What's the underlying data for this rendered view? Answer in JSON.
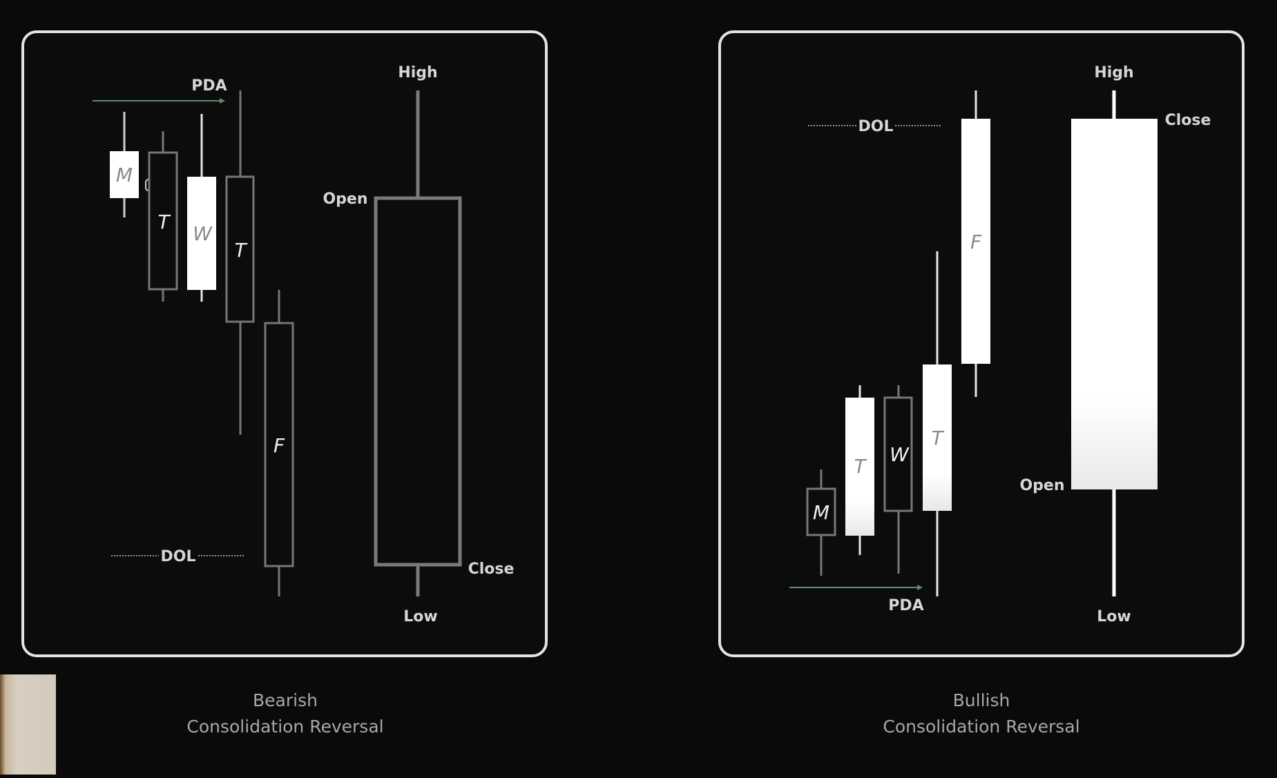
{
  "bearish": {
    "caption_line1": "Bearish",
    "caption_line2": "Consolidation Reversal",
    "labels": {
      "pda": "PDA",
      "dol": "DOL",
      "high": "High",
      "open": "Open",
      "close": "Close",
      "low": "Low"
    },
    "candles": [
      "M",
      "T",
      "W",
      "T",
      "F"
    ]
  },
  "bullish": {
    "caption_line1": "Bullish",
    "caption_line2": "Consolidation Reversal",
    "labels": {
      "pda": "PDA",
      "dol": "DOL",
      "high": "High",
      "open": "Open",
      "close": "Close",
      "low": "Low"
    },
    "candles": [
      "M",
      "T",
      "W",
      "T",
      "F"
    ]
  },
  "colors": {
    "pda_line": "#5f8f6a",
    "frame": "#e4e4e4",
    "background": "#0a0a0a"
  }
}
